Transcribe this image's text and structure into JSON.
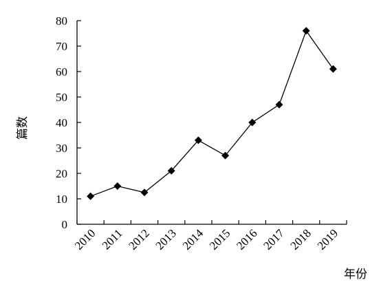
{
  "chart_data": {
    "type": "line",
    "title": "",
    "xlabel": "年份",
    "ylabel": "篇数",
    "categories": [
      "2010",
      "2011",
      "2012",
      "2013",
      "2014",
      "2015",
      "2016",
      "2017",
      "2018",
      "2019"
    ],
    "series": [
      {
        "values": [
          11,
          15,
          12.5,
          21,
          33,
          27,
          40,
          47,
          76,
          61
        ]
      }
    ],
    "ylim": [
      0,
      80
    ],
    "yticks": [
      0,
      10,
      20,
      30,
      40,
      50,
      60,
      70,
      80
    ],
    "marker": "diamond",
    "grid": false,
    "legend": "none",
    "colors": {
      "line": "#000000",
      "marker": "#000000",
      "axis": "#000000"
    }
  }
}
